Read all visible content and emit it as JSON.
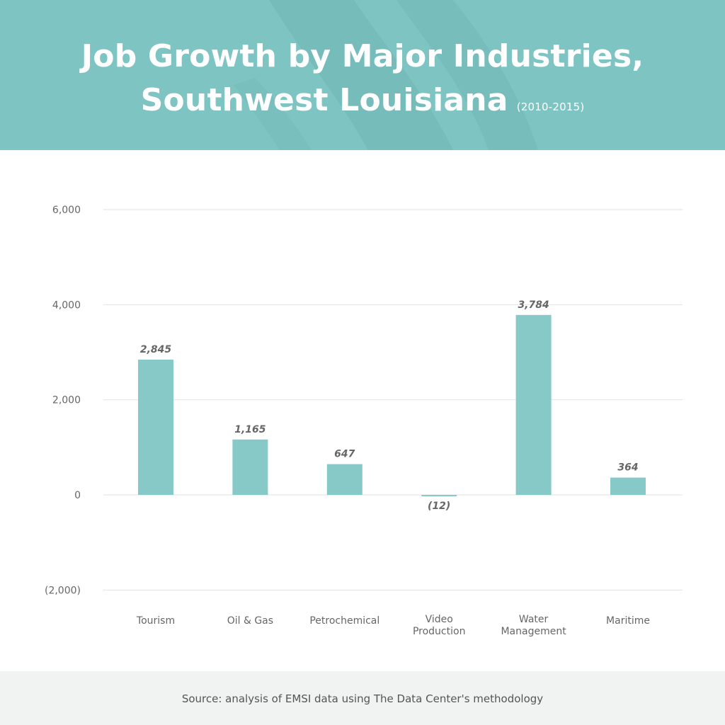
{
  "header": {
    "title_line1": "Job Growth by Major Industries,",
    "title_line2": "Southwest Louisiana",
    "title_years": "(2010-2015)"
  },
  "footer": {
    "source": "Source: analysis of EMSI data using The Data Center's methodology"
  },
  "colors": {
    "header_bg": "#7ec4c2",
    "bar": "#87c9c7",
    "gridline": "#e2e2e2",
    "footer_bg": "#f1f2f2"
  },
  "chart_data": {
    "type": "bar",
    "title": "Job Growth by Major Industries, Southwest Louisiana (2010-2015)",
    "categories": [
      [
        "Tourism"
      ],
      [
        "Oil & Gas"
      ],
      [
        "Petrochemical"
      ],
      [
        "Video",
        "Production"
      ],
      [
        "Water",
        "Management"
      ],
      [
        "Maritime"
      ]
    ],
    "values": [
      2845,
      1165,
      647,
      -12,
      3784,
      364
    ],
    "value_labels": [
      "2,845",
      "1,165",
      "647",
      "(12)",
      "3,784",
      "364"
    ],
    "yticks": [
      6000,
      4000,
      2000,
      0,
      -2000
    ],
    "ytick_labels": [
      "6,000",
      "4,000",
      "2,000",
      "0",
      "(2,000)"
    ],
    "ylim": [
      -2000,
      6000
    ],
    "grid": true,
    "legend": "none"
  }
}
